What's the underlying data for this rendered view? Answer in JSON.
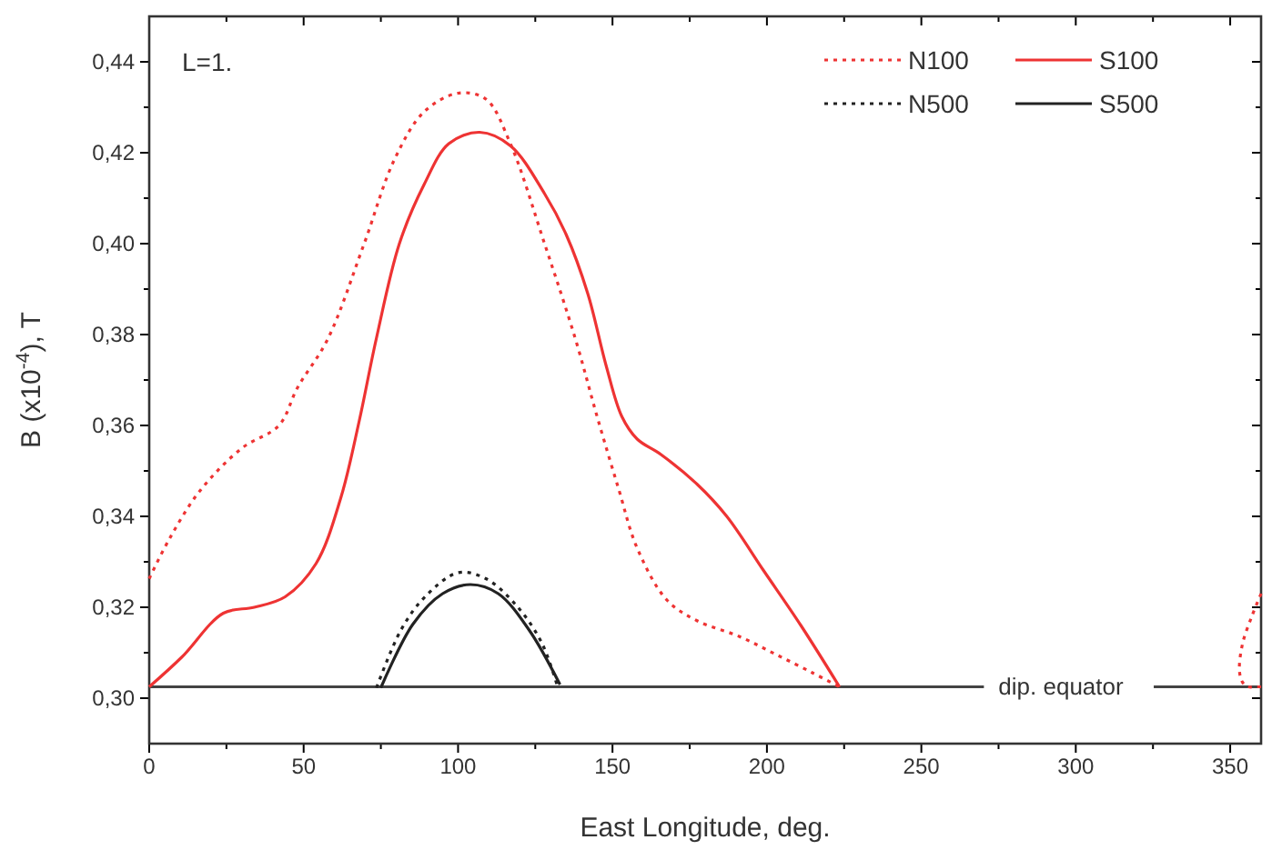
{
  "chart_data": {
    "type": "line",
    "xlabel": "East Longitude, deg.",
    "ylabel": "B (x10$^{-4}$), T",
    "annotations": [
      "L=1."
    ],
    "xlim": [
      0,
      360
    ],
    "ylim": [
      0.29,
      0.45
    ],
    "xticks": [
      0,
      {
        "value": 25,
        "label": null
      },
      50,
      {
        "value": 75,
        "label": null
      },
      100,
      {
        "value": 125,
        "label": null
      },
      150,
      {
        "value": 175,
        "label": null
      },
      200,
      {
        "value": 225,
        "label": null
      },
      250,
      {
        "value": 275,
        "label": null
      },
      300,
      {
        "value": 325,
        "label": null
      },
      350
    ],
    "yticks": [
      {
        "value": 0.3,
        "label": "0,30"
      },
      {
        "value": 0.31,
        "label": null
      },
      {
        "value": 0.32,
        "label": "0,32"
      },
      {
        "value": 0.33,
        "label": null
      },
      {
        "value": 0.34,
        "label": "0,34"
      },
      {
        "value": 0.35,
        "label": null
      },
      {
        "value": 0.36,
        "label": "0,36"
      },
      {
        "value": 0.37,
        "label": null
      },
      {
        "value": 0.38,
        "label": "0,38"
      },
      {
        "value": 0.39,
        "label": null
      },
      {
        "value": 0.4,
        "label": "0,40"
      },
      {
        "value": 0.41,
        "label": null
      },
      {
        "value": 0.42,
        "label": "0,42"
      },
      {
        "value": 0.43,
        "label": null
      },
      {
        "value": 0.44,
        "label": "0,44"
      }
    ],
    "grid": false,
    "legend": "top right",
    "marker": "none",
    "ref_lines": [
      {
        "axis": "y",
        "value": 0.3025,
        "label": "dip. equator",
        "color": "#444444"
      }
    ],
    "series": [
      {
        "name": "N100",
        "color": "#ee3333",
        "line_style": "dotted",
        "x": [
          0,
          6.5,
          16.4,
          30,
          42,
          48,
          57.8,
          69.6,
          79.4,
          89,
          100,
          109,
          117,
          128,
          138,
          145,
          152,
          158,
          167.6,
          177.5,
          191,
          203,
          214.7,
          223.5
        ],
        "values": [
          0.3263,
          0.335,
          0.3456,
          0.355,
          0.36,
          0.3683,
          0.379,
          0.4,
          0.4185,
          0.429,
          0.4331,
          0.4318,
          0.4219,
          0.4,
          0.379,
          0.362,
          0.346,
          0.333,
          0.3216,
          0.317,
          0.3136,
          0.3096,
          0.3056,
          0.3025
        ]
      },
      {
        "name": "S100",
        "color": "#ee3333",
        "line_style": "solid",
        "x": [
          0,
          10.5,
          24,
          34,
          44,
          54,
          62,
          68,
          73.5,
          81,
          89,
          97,
          107,
          117,
          128,
          135,
          142,
          148,
          153,
          158,
          165.7,
          177.5,
          187,
          199,
          211,
          223.5
        ],
        "values": [
          0.3025,
          0.309,
          0.3187,
          0.32,
          0.3223,
          0.3296,
          0.344,
          0.361,
          0.379,
          0.4,
          0.413,
          0.422,
          0.4245,
          0.4215,
          0.411,
          0.402,
          0.389,
          0.373,
          0.362,
          0.357,
          0.3536,
          0.347,
          0.34,
          0.328,
          0.316,
          0.3025
        ]
      },
      {
        "name": "N500",
        "color": "#222222",
        "line_style": "dotted",
        "x": [
          73.6,
          81.5,
          89.3,
          100,
          109,
          119,
          127,
          132
        ],
        "values": [
          0.3023,
          0.315,
          0.3223,
          0.3276,
          0.3263,
          0.3203,
          0.3123,
          0.303
        ]
      },
      {
        "name": "S500",
        "color": "#222222",
        "line_style": "solid",
        "x": [
          75,
          85.4,
          95,
          104,
          113,
          123,
          133
        ],
        "values": [
          0.3023,
          0.3163,
          0.323,
          0.325,
          0.323,
          0.315,
          0.303
        ]
      },
      {
        "color": "#ee3333",
        "line_style": "dotted",
        "x": [
          360,
          357,
          354,
          353,
          354,
          356,
          358,
          360
        ],
        "values": [
          0.323,
          0.318,
          0.312,
          0.306,
          0.3035,
          0.3025,
          0.3025,
          0.3025
        ]
      }
    ]
  }
}
